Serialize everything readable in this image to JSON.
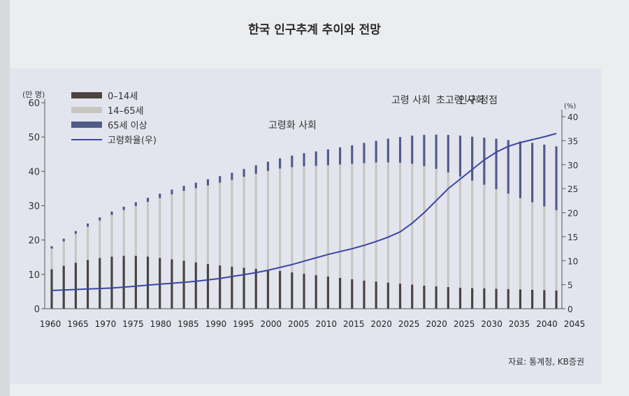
{
  "source": "자료: 통계청, KB증권",
  "chart_data": {
    "type": "bar",
    "title": "한국 인구추계 추이와 전망",
    "left_axis_unit": "(만 명)",
    "right_axis_unit": "(%)",
    "ylim_left": [
      0,
      60
    ],
    "ylim_right": [
      0,
      40
    ],
    "left_ticks": [
      "0",
      "10",
      "20",
      "30",
      "40",
      "50",
      "60"
    ],
    "right_ticks": [
      "0",
      "5",
      "10",
      "15",
      "20",
      "25",
      "30",
      "35",
      "40"
    ],
    "x_tick_labels": [
      "1960",
      "1965",
      "1970",
      "1975",
      "1980",
      "1985",
      "1990",
      "1995",
      "2000",
      "2005",
      "2010",
      "2015",
      "2020",
      "2025",
      "2020",
      "2025",
      "2030",
      "2035",
      "2040",
      "2045"
    ],
    "legend": [
      "0–14세",
      "14–65세",
      "65세 이상",
      "고령화율(우)"
    ],
    "legend_position": "top-left",
    "annotations": [
      "고령화 사회",
      "고령 사회",
      "초고령 사회",
      "인구 정점"
    ],
    "colors": {
      "age_0_14": "#4a4340",
      "age_15_64": "#c9c6c2",
      "age_65_plus": "#525c88",
      "aging_rate": "#3946a5"
    },
    "years": [
      1960,
      1962,
      1964,
      1966,
      1968,
      1970,
      1972,
      1974,
      1976,
      1978,
      1980,
      1982,
      1984,
      1986,
      1988,
      1990,
      1992,
      1994,
      1996,
      1998,
      2000,
      2002,
      2004,
      2006,
      2008,
      2010,
      2012,
      2014,
      2016,
      2018,
      2020,
      2022,
      2024,
      2026,
      2028,
      2030,
      2032,
      2034,
      2036,
      2038,
      2040,
      2042,
      2044
    ],
    "series": [
      {
        "name": "0–14세",
        "axis": "left",
        "values": [
          11.5,
          12.5,
          13.4,
          14.2,
          14.8,
          15.2,
          15.4,
          15.4,
          15.2,
          14.8,
          14.4,
          14.0,
          13.5,
          13.0,
          12.6,
          12.2,
          11.9,
          11.6,
          11.3,
          11.0,
          10.6,
          10.2,
          9.8,
          9.4,
          9.0,
          8.6,
          8.2,
          7.9,
          7.6,
          7.3,
          7.0,
          6.7,
          6.5,
          6.3,
          6.1,
          6.0,
          5.9,
          5.8,
          5.7,
          5.6,
          5.5,
          5.4,
          5.3
        ]
      },
      {
        "name": "14–65세",
        "axis": "left",
        "values": [
          6.0,
          7.1,
          8.4,
          9.7,
          10.9,
          12.1,
          13.3,
          14.5,
          15.9,
          17.4,
          18.9,
          20.3,
          21.6,
          22.9,
          24.1,
          25.3,
          26.5,
          27.7,
          28.8,
          29.8,
          30.6,
          31.3,
          31.8,
          32.4,
          33.0,
          33.6,
          34.2,
          34.7,
          35.0,
          35.2,
          35.2,
          34.8,
          34.2,
          33.4,
          32.4,
          31.3,
          30.2,
          29.0,
          27.8,
          26.6,
          25.5,
          24.4,
          23.4
        ]
      },
      {
        "name": "65세 이상",
        "axis": "left",
        "values": [
          0.7,
          0.8,
          0.8,
          0.9,
          0.9,
          1.0,
          1.0,
          1.1,
          1.2,
          1.3,
          1.4,
          1.5,
          1.6,
          1.8,
          1.9,
          2.1,
          2.3,
          2.5,
          2.7,
          3.0,
          3.4,
          3.8,
          4.2,
          4.6,
          5.0,
          5.4,
          5.9,
          6.3,
          6.9,
          7.5,
          8.2,
          9.1,
          10.0,
          10.9,
          11.9,
          12.8,
          13.7,
          14.7,
          15.6,
          16.5,
          17.3,
          18.0,
          18.6
        ]
      },
      {
        "name": "고령화율(우)",
        "axis": "right",
        "type": "line",
        "values": [
          3.8,
          3.9,
          4.0,
          4.1,
          4.2,
          4.3,
          4.5,
          4.7,
          4.9,
          5.1,
          5.3,
          5.5,
          5.7,
          6.0,
          6.3,
          6.7,
          7.1,
          7.5,
          8.0,
          8.6,
          9.2,
          9.9,
          10.6,
          11.3,
          11.9,
          12.5,
          13.2,
          14.0,
          14.9,
          16.0,
          17.8,
          20.0,
          22.5,
          25.0,
          27.0,
          29.0,
          31.0,
          32.6,
          33.8,
          34.6,
          35.2,
          35.8,
          36.5
        ]
      }
    ]
  }
}
